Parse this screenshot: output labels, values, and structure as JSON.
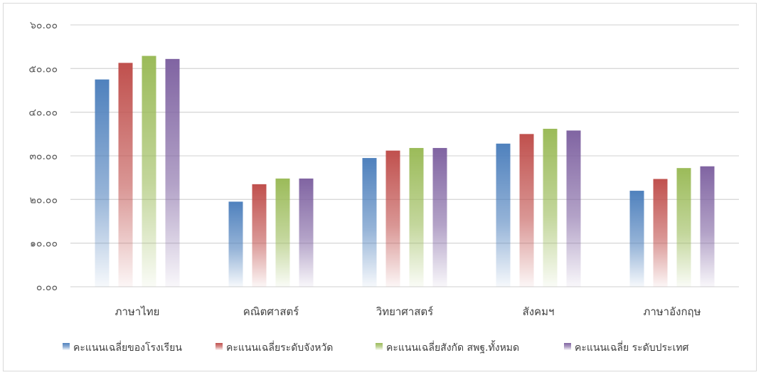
{
  "chart_data": {
    "type": "bar",
    "categories": [
      "ภาษาไทย",
      "คณิตศาสตร์",
      "วิทยาศาสตร์",
      "สังคมฯ",
      "ภาษาอังกฤษ"
    ],
    "series": [
      {
        "name": "คะแนนเฉลี่ยของโรงเรียน",
        "color": "#4f81bd",
        "values": [
          47.5,
          19.5,
          29.5,
          32.8,
          22.0
        ]
      },
      {
        "name": "คะแนนเฉลี่ยระดับจังหวัด",
        "color": "#c0504d",
        "values": [
          51.3,
          23.5,
          31.2,
          35.0,
          24.7
        ]
      },
      {
        "name": "คะแนนเฉลี่ยสังกัด สพฐ.ทั้งหมด",
        "color": "#9bbb59",
        "values": [
          52.9,
          24.8,
          31.8,
          36.2,
          27.2
        ]
      },
      {
        "name": "คะแนนเฉลี่ย ระดับประเทศ",
        "color": "#8064a2",
        "values": [
          52.2,
          24.8,
          31.8,
          35.8,
          27.6
        ]
      }
    ],
    "yticks": [
      "๐.๐๐",
      "๑๐.๐๐",
      "๒๐.๐๐",
      "๓๐.๐๐",
      "๔๐.๐๐",
      "๕๐.๐๐",
      "๖๐.๐๐"
    ],
    "ylim": [
      0,
      60
    ],
    "grid": true,
    "legend_position": "bottom"
  }
}
